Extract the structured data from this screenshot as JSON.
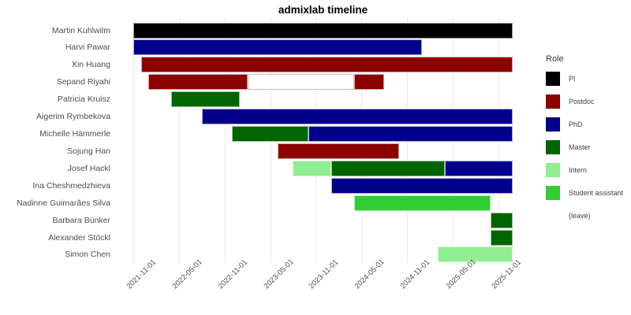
{
  "title": "admixlab timeline",
  "legend": {
    "title": "Role",
    "entries": [
      {
        "label": "PI",
        "color": "#000000",
        "edge": "#999999"
      },
      {
        "label": "Postdoc",
        "color": "#8B0000",
        "edge": "#D9A3A3"
      },
      {
        "label": "PhD",
        "color": "#00008B",
        "edge": "#A8A8DC"
      },
      {
        "label": "Master",
        "color": "#006400",
        "edge": "#9CC49C"
      },
      {
        "label": "Intern",
        "color": "#90EE90",
        "edge": "#D2F8D2"
      },
      {
        "label": "Student assistant",
        "color": "#32CD32",
        "edge": "#ADEBAD"
      },
      {
        "label": "(leave)",
        "color": "#FFFFFF",
        "edge": "#E0B4B4"
      }
    ]
  },
  "chart_data": {
    "type": "gantt",
    "title": "admixlab timeline",
    "x_axis": {
      "tick_labels": [
        "2021-11-01",
        "2022-05-01",
        "2022-11-01",
        "2023-05-01",
        "2023-11-01",
        "2024-05-01",
        "2024-11-01",
        "2025-05-01",
        "2025-11-01"
      ],
      "domain_start": "2021-11-01",
      "domain_months": 49.9,
      "grid": true
    },
    "role_colors": {
      "PI": {
        "fill": "#000000",
        "edge": "#999999"
      },
      "Postdoc": {
        "fill": "#8B0000",
        "edge": "#D9A3A3"
      },
      "PhD": {
        "fill": "#00008B",
        "edge": "#A8A8DC"
      },
      "Master": {
        "fill": "#006400",
        "edge": "#9CC49C"
      },
      "Intern": {
        "fill": "#90EE90",
        "edge": "#D2F8D2"
      },
      "Student assistant": {
        "fill": "#32CD32",
        "edge": "#ADEBAD"
      },
      "(leave)": {
        "fill": "#FFFFFF",
        "edge": "#E0B4B4"
      }
    },
    "people": [
      {
        "name": "Martin Kuhlwilm",
        "segments": [
          {
            "role": "PI",
            "start": "2021-11",
            "end": null
          }
        ]
      },
      {
        "name": "Harvi Pawar",
        "segments": [
          {
            "role": "PhD",
            "start": "2021-11",
            "end": "2025-01"
          }
        ]
      },
      {
        "name": "Xin Huang",
        "segments": [
          {
            "role": "Postdoc",
            "start": "2021-12",
            "end": null
          }
        ]
      },
      {
        "name": "Sepand Riyahi",
        "segments": [
          {
            "role": "Postdoc",
            "start": "2022-01",
            "end": "2023-02"
          },
          {
            "role": "(leave)",
            "start": "2023-02",
            "end": "2024-04"
          },
          {
            "role": "Postdoc",
            "start": "2024-04",
            "end": "2024-08"
          }
        ]
      },
      {
        "name": "Patricia Kruisz",
        "segments": [
          {
            "role": "Master",
            "start": "2022-04",
            "end": "2023-01"
          }
        ]
      },
      {
        "name": "Aigerim Rymbekova",
        "segments": [
          {
            "role": "PhD",
            "start": "2022-08",
            "end": null
          }
        ]
      },
      {
        "name": "Michelle Hämmerle",
        "segments": [
          {
            "role": "Master",
            "start": "2022-12",
            "end": "2023-10"
          },
          {
            "role": "PhD",
            "start": "2023-10",
            "end": null
          }
        ]
      },
      {
        "name": "Sojung Han",
        "segments": [
          {
            "role": "Postdoc",
            "start": "2023-06",
            "end": "2024-10"
          }
        ]
      },
      {
        "name": "Josef Hackl",
        "segments": [
          {
            "role": "Intern",
            "start": "2023-08",
            "end": "2024-01"
          },
          {
            "role": "Master",
            "start": "2024-01",
            "end": "2025-04"
          },
          {
            "role": "PhD",
            "start": "2025-04",
            "end": null
          }
        ]
      },
      {
        "name": "Ina Cheshmedzhieva",
        "segments": [
          {
            "role": "PhD",
            "start": "2024-01",
            "end": null
          }
        ]
      },
      {
        "name": "Nadinne Guimarães Silva",
        "segments": [
          {
            "role": "Student assistant",
            "start": "2024-04",
            "end": "2025-10"
          }
        ]
      },
      {
        "name": "Barbara Bünker",
        "segments": [
          {
            "role": "Master",
            "start": "2025-10",
            "end": null
          }
        ]
      },
      {
        "name": "Alexander Stöckl",
        "segments": [
          {
            "role": "Master",
            "start": "2025-10",
            "end": null
          }
        ]
      },
      {
        "name": "Simon Chen",
        "segments": [
          {
            "role": "Intern",
            "start": "2025-03",
            "end": null
          }
        ]
      }
    ]
  }
}
